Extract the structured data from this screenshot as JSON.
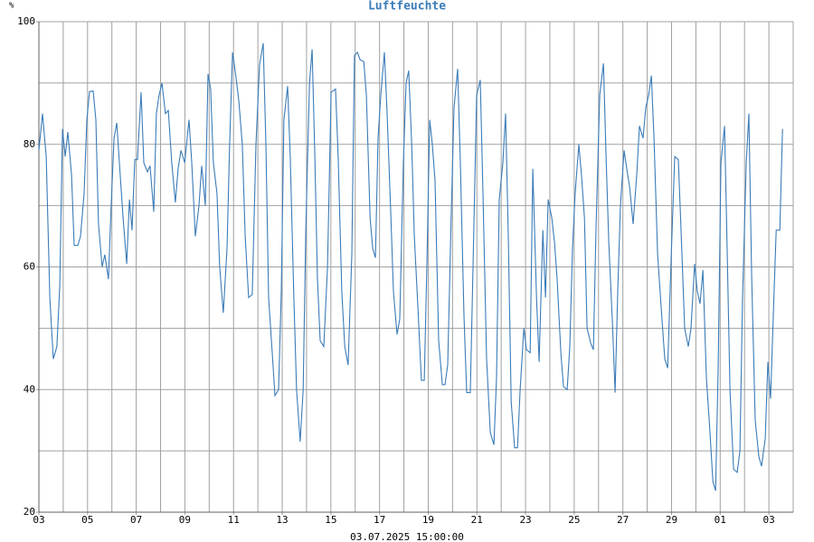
{
  "chart_data": {
    "type": "line",
    "title": "Luftfeuchte",
    "y_label": "%",
    "x_label": "03.07.2025 15:00:00",
    "color": "#3b7cb8",
    "grid": true,
    "xlim": [
      0,
      31
    ],
    "ylim": [
      20,
      100
    ],
    "xticks": [
      {
        "value": 0,
        "label": "03"
      },
      {
        "value": 2,
        "label": "05"
      },
      {
        "value": 4,
        "label": "07"
      },
      {
        "value": 6,
        "label": "09"
      },
      {
        "value": 8,
        "label": "11"
      },
      {
        "value": 10,
        "label": "13"
      },
      {
        "value": 12,
        "label": "15"
      },
      {
        "value": 14,
        "label": "17"
      },
      {
        "value": 16,
        "label": "19"
      },
      {
        "value": 18,
        "label": "21"
      },
      {
        "value": 20,
        "label": "23"
      },
      {
        "value": 22,
        "label": "25"
      },
      {
        "value": 24,
        "label": "27"
      },
      {
        "value": 26,
        "label": "29"
      },
      {
        "value": 28,
        "label": "01"
      },
      {
        "value": 30,
        "label": "03"
      }
    ],
    "xminor_ticks": [
      1,
      3,
      5,
      7,
      9,
      11,
      13,
      15,
      17,
      19,
      21,
      23,
      25,
      27,
      29,
      31
    ],
    "yticks": [
      20,
      40,
      60,
      80,
      100
    ],
    "yminor_ticks": [
      30,
      50,
      70,
      90
    ],
    "x": [
      0,
      0.15,
      0.3,
      0.45,
      0.59,
      0.74,
      0.86,
      0.97,
      1.08,
      1.19,
      1.34,
      1.45,
      1.6,
      1.71,
      1.86,
      1.97,
      2.08,
      2.23,
      2.34,
      2.45,
      2.6,
      2.71,
      2.86,
      2.97,
      3.09,
      3.2,
      3.31,
      3.46,
      3.61,
      3.72,
      3.83,
      3.94,
      4.05,
      4.2,
      4.31,
      4.46,
      4.57,
      4.72,
      4.83,
      4.94,
      5.06,
      5.2,
      5.32,
      5.46,
      5.61,
      5.72,
      5.84,
      5.99,
      6.17,
      6.28,
      6.43,
      6.58,
      6.69,
      6.84,
      6.95,
      7.06,
      7.17,
      7.32,
      7.43,
      7.58,
      7.73,
      7.84,
      7.96,
      8.1,
      8.22,
      8.36,
      8.48,
      8.62,
      8.77,
      8.92,
      9.07,
      9.22,
      9.33,
      9.44,
      9.59,
      9.7,
      9.85,
      9.96,
      10.07,
      10.22,
      10.33,
      10.48,
      10.59,
      10.74,
      10.86,
      10.97,
      11.12,
      11.23,
      11.34,
      11.45,
      11.56,
      11.71,
      11.86,
      12.01,
      12.19,
      12.3,
      12.45,
      12.57,
      12.71,
      12.86,
      12.97,
      13.09,
      13.2,
      13.35,
      13.46,
      13.61,
      13.72,
      13.83,
      13.94,
      14.05,
      14.2,
      14.31,
      14.46,
      14.57,
      14.72,
      14.83,
      14.98,
      15.09,
      15.2,
      15.32,
      15.43,
      15.58,
      15.72,
      15.84,
      15.95,
      16.06,
      16.17,
      16.28,
      16.43,
      16.58,
      16.69,
      16.8,
      16.95,
      17.06,
      17.21,
      17.32,
      17.47,
      17.58,
      17.73,
      17.84,
      17.99,
      18.14,
      18.25,
      18.4,
      18.55,
      18.7,
      18.81,
      18.92,
      19.07,
      19.18,
      19.29,
      19.41,
      19.55,
      19.67,
      19.78,
      19.93,
      20.04,
      20.19,
      20.3,
      20.45,
      20.56,
      20.71,
      20.82,
      20.93,
      21.08,
      21.19,
      21.3,
      21.45,
      21.56,
      21.71,
      21.82,
      21.93,
      22.04,
      22.19,
      22.3,
      22.42,
      22.53,
      22.68,
      22.79,
      22.9,
      23.05,
      23.2,
      23.31,
      23.42,
      23.57,
      23.68,
      23.79,
      23.9,
      24.05,
      24.16,
      24.28,
      24.42,
      24.57,
      24.68,
      24.83,
      24.94,
      25.06,
      25.17,
      25.28,
      25.43,
      25.58,
      25.72,
      25.84,
      25.99,
      26.13,
      26.28,
      26.39,
      26.54,
      26.69,
      26.8,
      26.95,
      27.06,
      27.17,
      27.29,
      27.43,
      27.58,
      27.7,
      27.81,
      27.92,
      28.03,
      28.18,
      28.29,
      28.4,
      28.55,
      28.7,
      28.81,
      28.92,
      29.07,
      29.18,
      29.29,
      29.44,
      29.59,
      29.7,
      29.85,
      29.96,
      30.07,
      30.19,
      30.3,
      30.45,
      30.56
    ],
    "values": [
      79,
      85,
      78,
      55,
      45,
      47,
      57,
      82.5,
      78,
      82,
      75,
      63.5,
      63.5,
      65,
      72,
      84,
      88.6,
      88.7,
      84,
      67,
      60,
      62,
      58,
      70,
      81,
      83.5,
      77,
      68,
      60.5,
      71,
      66,
      77.5,
      77.5,
      88.5,
      77,
      75.5,
      76.5,
      69,
      85,
      88,
      90,
      85,
      85.5,
      77,
      70.5,
      76,
      79,
      77,
      84,
      77,
      65,
      70,
      76.5,
      70,
      91.5,
      89,
      77,
      72,
      60,
      52.5,
      63,
      80,
      95,
      91,
      87,
      80,
      65,
      55,
      55.5,
      80,
      93,
      96.5,
      80,
      55,
      46,
      39,
      40,
      56,
      84,
      89.5,
      78,
      55,
      40,
      31.5,
      40,
      66,
      90,
      95.5,
      78,
      58,
      48,
      47,
      60,
      88.5,
      89,
      78,
      56,
      47,
      44,
      62,
      94.5,
      95,
      93.8,
      93.5,
      88,
      68,
      63,
      61.5,
      81,
      88,
      95,
      85,
      69,
      56,
      49,
      51.5,
      77,
      90,
      92,
      80,
      65,
      53,
      41.5,
      41.5,
      61,
      84,
      80,
      74,
      48,
      40.8,
      40.8,
      44,
      69,
      86,
      92.3,
      77,
      52,
      39.5,
      39.5,
      60,
      88,
      90.5,
      72,
      45,
      33,
      31,
      42,
      71,
      77,
      85,
      65,
      38,
      30.5,
      30.5,
      40,
      50,
      46.5,
      46,
      76,
      55,
      44.5,
      66,
      55,
      71,
      68,
      64,
      58,
      46,
      40.5,
      40,
      47,
      63,
      72,
      80,
      75,
      68,
      50,
      47.5,
      46.5,
      67,
      88,
      93.2,
      78,
      64,
      51,
      39.5,
      56,
      70,
      79,
      76,
      73,
      67,
      75,
      83,
      81,
      86,
      88,
      91.2,
      81,
      62,
      53,
      45,
      43.5,
      62,
      78,
      77.5,
      66,
      50,
      47,
      50,
      60.5,
      56,
      54,
      59.5,
      42,
      33,
      25,
      23.5,
      44,
      77,
      83,
      62,
      40,
      27,
      26.5,
      30,
      55,
      77,
      85,
      59,
      35,
      29,
      27.5,
      32,
      44.5,
      38.5,
      53,
      66,
      66,
      82.5
    ]
  }
}
